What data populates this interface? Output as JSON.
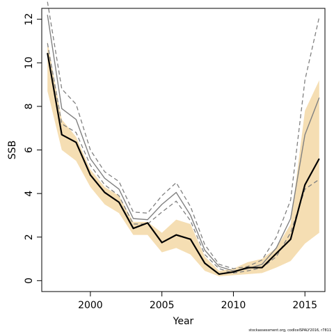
{
  "chart_data": {
    "type": "line",
    "xlabel": "Year",
    "ylabel": "SSB",
    "xlim": [
      1996.6,
      2016.4
    ],
    "ylim": [
      -0.5,
      12.5
    ],
    "x_ticks": [
      2000,
      2005,
      2010,
      2015
    ],
    "y_ticks": [
      0,
      2,
      4,
      6,
      8,
      10,
      12
    ],
    "x": [
      1997,
      1998,
      1999,
      2000,
      2001,
      2002,
      2003,
      2004,
      2005,
      2006,
      2007,
      2008,
      2009,
      2010,
      2011,
      2012,
      2013,
      2014,
      2015,
      2016
    ],
    "series": [
      {
        "role": "ci_upper",
        "color": "#F5DEB3",
        "values": [
          11.0,
          7.4,
          6.6,
          5.1,
          4.3,
          3.9,
          2.7,
          2.7,
          2.2,
          2.8,
          2.6,
          1.1,
          0.45,
          0.55,
          0.85,
          1.0,
          1.5,
          2.6,
          7.8,
          9.2
        ]
      },
      {
        "role": "ci_lower",
        "color": "#F5DEB3",
        "values": [
          8.7,
          6.0,
          5.5,
          4.3,
          3.5,
          3.1,
          2.1,
          2.1,
          1.3,
          1.5,
          1.2,
          0.45,
          0.2,
          0.25,
          0.3,
          0.35,
          0.6,
          0.9,
          1.7,
          2.2
        ]
      },
      {
        "role": "estimate",
        "color": "#000000",
        "values": [
          10.45,
          6.7,
          6.35,
          4.85,
          4.05,
          3.6,
          2.4,
          2.65,
          1.75,
          2.1,
          1.9,
          0.8,
          0.3,
          0.4,
          0.6,
          0.6,
          1.25,
          1.9,
          4.4,
          5.6
        ]
      },
      {
        "role": "previous_estimate",
        "color": "#808080",
        "values": [
          12.2,
          7.9,
          7.4,
          5.6,
          4.7,
          4.2,
          2.85,
          2.8,
          3.5,
          4.05,
          3.0,
          1.4,
          0.65,
          0.45,
          0.55,
          0.75,
          1.5,
          2.85,
          6.7,
          8.4
        ]
      },
      {
        "role": "previous_ci_upper",
        "color": "#808080",
        "dash": true,
        "values": [
          12.8,
          8.8,
          8.1,
          6.0,
          5.0,
          4.55,
          3.15,
          3.1,
          3.9,
          4.5,
          3.4,
          1.65,
          0.75,
          0.55,
          0.65,
          0.95,
          2.0,
          3.7,
          9.2,
          12.1
        ]
      },
      {
        "role": "previous_ci_lower",
        "color": "#808080",
        "dash": true,
        "values": [
          10.9,
          7.2,
          6.8,
          5.3,
          4.4,
          3.9,
          2.6,
          2.6,
          3.15,
          3.65,
          2.75,
          1.2,
          0.55,
          0.35,
          0.45,
          0.6,
          1.1,
          2.2,
          4.2,
          4.65
        ]
      }
    ]
  },
  "footer": {
    "note": "stockassessment.org, codIcelSPALY2016, r7811"
  }
}
